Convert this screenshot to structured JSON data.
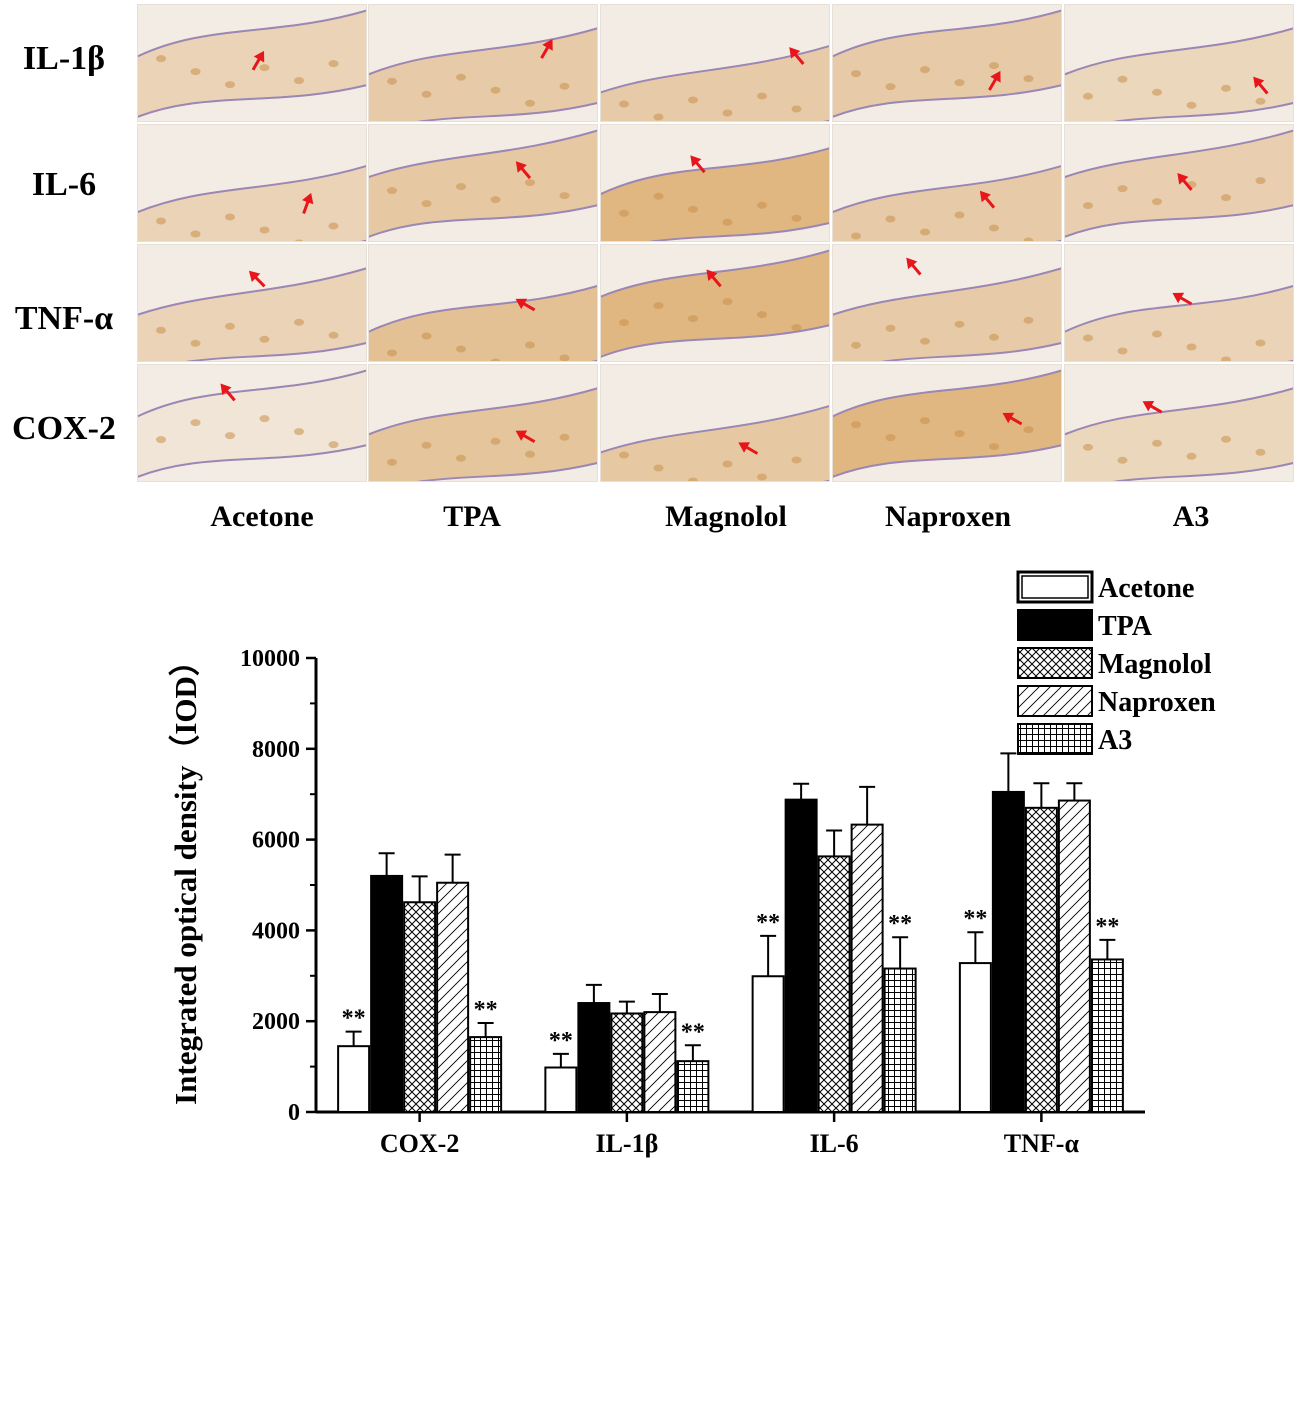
{
  "micrograph_grid": {
    "rows": [
      "IL-1β",
      "IL-6",
      "TNF-α",
      "COX-2"
    ],
    "columns": [
      "Acetone",
      "TPA",
      "Magnolol",
      "Naproxen",
      "A3"
    ],
    "arrow_color": "#e8151b",
    "stain_colors": {
      "light": "#f3ece4",
      "brown": "#d9a560",
      "membrane": "#9b86b4"
    }
  },
  "chart_data": {
    "type": "bar",
    "categories": [
      "COX-2",
      "IL-1β",
      "IL-6",
      "TNF-α"
    ],
    "ylabel": "Integrated optical density（IOD）",
    "ylim": [
      0,
      10000
    ],
    "yticks": [
      "0",
      "2000",
      "4000",
      "6000",
      "8000",
      "10000"
    ],
    "legend_position": "top-right",
    "significance_marker": "**",
    "series": [
      {
        "name": "Acetone",
        "pattern": "open",
        "values": [
          1450,
          980,
          2990,
          3280
        ],
        "errors": [
          320,
          300,
          890,
          680
        ],
        "sig": [
          true,
          true,
          true,
          true
        ]
      },
      {
        "name": "TPA",
        "pattern": "solid",
        "values": [
          5200,
          2400,
          6880,
          7050
        ],
        "errors": [
          500,
          400,
          350,
          850
        ],
        "sig": [
          false,
          false,
          false,
          false
        ]
      },
      {
        "name": "Magnolol",
        "pattern": "crosshatch",
        "values": [
          4620,
          2170,
          5630,
          6700
        ],
        "errors": [
          570,
          260,
          570,
          540
        ],
        "sig": [
          false,
          false,
          false,
          false
        ]
      },
      {
        "name": "Naproxen",
        "pattern": "diagonal",
        "values": [
          5050,
          2200,
          6330,
          6860
        ],
        "errors": [
          620,
          400,
          830,
          380
        ],
        "sig": [
          false,
          false,
          false,
          false
        ]
      },
      {
        "name": "A3",
        "pattern": "grid",
        "values": [
          1650,
          1120,
          3160,
          3360
        ],
        "errors": [
          310,
          350,
          690,
          430
        ],
        "sig": [
          true,
          true,
          true,
          true
        ]
      }
    ]
  }
}
